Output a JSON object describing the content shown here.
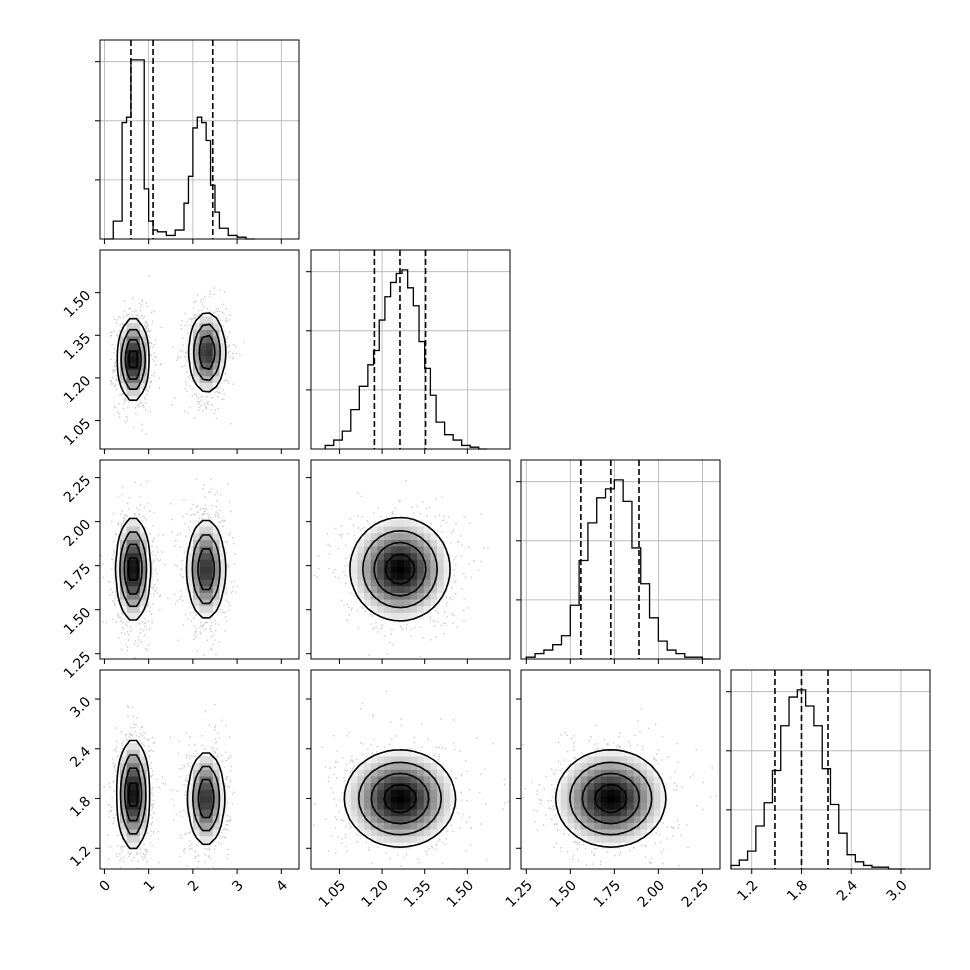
{
  "chart_data": {
    "type": "corner",
    "grid": true,
    "dimensions": [
      {
        "range": [
          -0.1,
          4.4
        ],
        "ticks": [
          0,
          1,
          2,
          3,
          4
        ],
        "tick_labels": [
          "0",
          "1",
          "2",
          "3",
          "4"
        ]
      },
      {
        "range": [
          0.95,
          1.65
        ],
        "ticks": [
          1.05,
          1.2,
          1.35,
          1.5
        ],
        "tick_labels": [
          "1.05",
          "1.20",
          "1.35",
          "1.50"
        ]
      },
      {
        "range": [
          1.22,
          2.35
        ],
        "ticks": [
          1.25,
          1.5,
          1.75,
          2.0,
          2.25
        ],
        "tick_labels": [
          "1.25",
          "1.50",
          "1.75",
          "2.00",
          "2.25"
        ]
      },
      {
        "range": [
          0.95,
          3.35
        ],
        "ticks": [
          1.2,
          1.8,
          2.4,
          3.0
        ],
        "tick_labels": [
          "1.2",
          "1.8",
          "2.4",
          "3.0"
        ]
      }
    ],
    "histograms": [
      {
        "edges": [
          0,
          0.2,
          0.4,
          0.5,
          0.6,
          0.8,
          0.9,
          1.0,
          1.1,
          1.2,
          1.4,
          1.6,
          1.8,
          1.9,
          2.0,
          2.1,
          2.2,
          2.3,
          2.4,
          2.5,
          2.6,
          2.8,
          3.0,
          3.2,
          3.4
        ],
        "counts": [
          0,
          0.1,
          0.65,
          0.68,
          1.0,
          1.0,
          0.28,
          0.1,
          0.05,
          0.04,
          0.02,
          0.05,
          0.2,
          0.35,
          0.62,
          0.68,
          0.65,
          0.55,
          0.3,
          0.15,
          0.06,
          0.02,
          0.01,
          0
        ],
        "quantiles": [
          0.6,
          1.1,
          2.45
        ]
      },
      {
        "edges": [
          1.0,
          1.03,
          1.06,
          1.09,
          1.12,
          1.15,
          1.17,
          1.19,
          1.21,
          1.23,
          1.25,
          1.27,
          1.29,
          1.31,
          1.33,
          1.35,
          1.37,
          1.39,
          1.42,
          1.45,
          1.48,
          1.51,
          1.54,
          1.57
        ],
        "counts": [
          0.02,
          0.05,
          0.1,
          0.22,
          0.35,
          0.47,
          0.55,
          0.72,
          0.85,
          0.93,
          0.98,
          1.0,
          0.9,
          0.8,
          0.6,
          0.45,
          0.3,
          0.15,
          0.08,
          0.05,
          0.02,
          0.01,
          0
        ],
        "quantiles": [
          1.173,
          1.263,
          1.353
        ]
      },
      {
        "edges": [
          1.25,
          1.3,
          1.35,
          1.4,
          1.45,
          1.5,
          1.55,
          1.6,
          1.65,
          1.7,
          1.75,
          1.8,
          1.85,
          1.9,
          1.95,
          2.0,
          2.05,
          2.1,
          2.15,
          2.2,
          2.25,
          2.3
        ],
        "counts": [
          0.01,
          0.03,
          0.05,
          0.08,
          0.13,
          0.3,
          0.55,
          0.76,
          0.9,
          0.95,
          1.0,
          0.88,
          0.62,
          0.42,
          0.23,
          0.1,
          0.05,
          0.03,
          0.01,
          0.01,
          0
        ],
        "quantiles": [
          1.56,
          1.73,
          1.89
        ]
      },
      {
        "edges": [
          0.95,
          1.05,
          1.15,
          1.25,
          1.35,
          1.45,
          1.55,
          1.65,
          1.75,
          1.85,
          1.95,
          2.05,
          2.15,
          2.25,
          2.35,
          2.45,
          2.55,
          2.65,
          2.75,
          2.85,
          2.95,
          3.05
        ],
        "counts": [
          0.02,
          0.05,
          0.1,
          0.24,
          0.37,
          0.55,
          0.8,
          0.96,
          1.0,
          0.91,
          0.8,
          0.56,
          0.36,
          0.2,
          0.08,
          0.04,
          0.02,
          0.01,
          0.01,
          0,
          0
        ],
        "quantiles": [
          1.48,
          1.8,
          2.12
        ]
      }
    ],
    "blobs": [
      {
        "x": 0,
        "y": 1,
        "centers": [
          [
            0.65,
            1.265,
            0.18,
            0.075,
            1.0
          ],
          [
            2.32,
            1.29,
            0.22,
            0.075,
            0.85
          ]
        ]
      },
      {
        "x": 0,
        "y": 2,
        "centers": [
          [
            0.65,
            1.73,
            0.2,
            0.15,
            1.0
          ],
          [
            2.3,
            1.73,
            0.23,
            0.15,
            0.85
          ]
        ]
      },
      {
        "x": 0,
        "y": 3,
        "centers": [
          [
            0.65,
            1.85,
            0.19,
            0.34,
            1.0
          ],
          [
            2.3,
            1.8,
            0.22,
            0.3,
            0.85
          ]
        ]
      },
      {
        "x": 1,
        "y": 2,
        "centers": [
          [
            1.263,
            1.73,
            0.09,
            0.15,
            1.0
          ]
        ]
      },
      {
        "x": 1,
        "y": 3,
        "centers": [
          [
            1.263,
            1.8,
            0.1,
            0.3,
            1.0
          ]
        ]
      },
      {
        "x": 2,
        "y": 3,
        "centers": [
          [
            1.73,
            1.8,
            0.16,
            0.3,
            1.0
          ]
        ]
      }
    ],
    "contour_levels": [
      0.15,
      0.35,
      0.6,
      0.85
    ],
    "scatter_threshold": 0.12
  }
}
